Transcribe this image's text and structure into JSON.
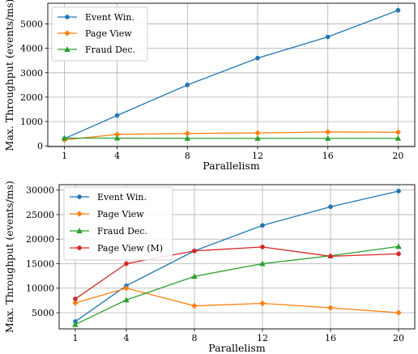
{
  "chart_data": [
    {
      "type": "line",
      "xlabel": "Parallelism",
      "ylabel": "Max. Throughput (events/ms)",
      "x": [
        1,
        4,
        8,
        12,
        16,
        20
      ],
      "xticks": [
        1,
        4,
        8,
        12,
        16,
        20
      ],
      "yticks": [
        0,
        1000,
        2000,
        3000,
        4000,
        5000
      ],
      "xlim": [
        0.05,
        20.95
      ],
      "ylim": [
        -30,
        5850
      ],
      "grid": true,
      "legend_position": "top-left",
      "series": [
        {
          "name": "Event Win.",
          "color": "#1f77b4",
          "marker": "circle",
          "values": [
            300,
            1250,
            2500,
            3600,
            4470,
            5560
          ]
        },
        {
          "name": "Page View",
          "color": "#ff7f0e",
          "marker": "diamond",
          "values": [
            250,
            470,
            510,
            530,
            570,
            560
          ]
        },
        {
          "name": "Fraud Dec.",
          "color": "#2ca02c",
          "marker": "triangle",
          "values": [
            320,
            320,
            310,
            310,
            310,
            310
          ]
        }
      ]
    },
    {
      "type": "line",
      "xlabel": "Parallelism",
      "ylabel": "Max. Throughput (events/ms)",
      "x": [
        1,
        4,
        8,
        12,
        16,
        20
      ],
      "xticks": [
        1,
        4,
        8,
        12,
        16,
        20
      ],
      "yticks": [
        5000,
        10000,
        15000,
        20000,
        25000,
        30000
      ],
      "xlim": [
        0.05,
        20.95
      ],
      "ylim": [
        1700,
        31100
      ],
      "grid": true,
      "legend_position": "top-left",
      "series": [
        {
          "name": "Event Win.",
          "color": "#1f77b4",
          "marker": "circle",
          "values": [
            3200,
            10500,
            17600,
            22800,
            26600,
            29800
          ]
        },
        {
          "name": "Page View",
          "color": "#ff7f0e",
          "marker": "diamond",
          "values": [
            7000,
            10000,
            6400,
            6900,
            6000,
            5000
          ]
        },
        {
          "name": "Fraud Dec.",
          "color": "#2ca02c",
          "marker": "triangle",
          "values": [
            2600,
            7600,
            12400,
            15000,
            16600,
            18500
          ]
        },
        {
          "name": "Page View (M)",
          "color": "#d62728",
          "marker": "circle",
          "values": [
            7800,
            15000,
            17600,
            18400,
            16500,
            17000
          ]
        }
      ]
    }
  ]
}
